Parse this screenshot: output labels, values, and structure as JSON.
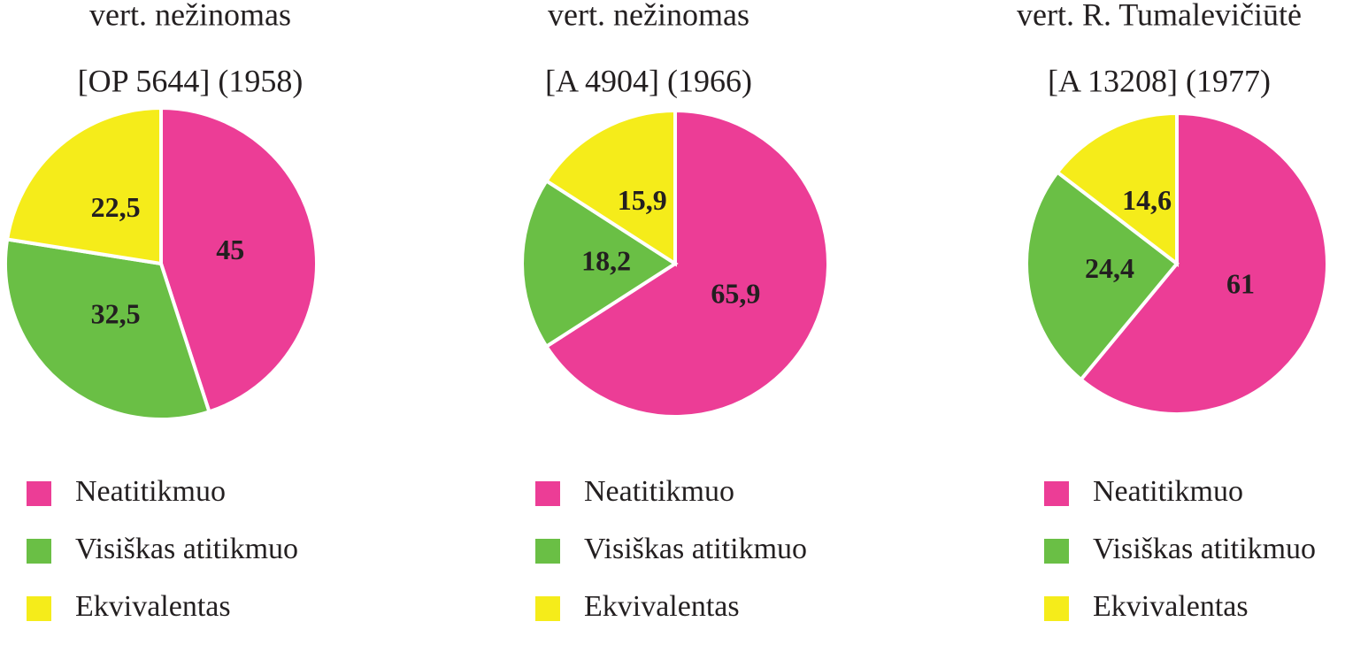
{
  "chart_data": [
    {
      "type": "pie",
      "title": "vert. nežinomas",
      "subtitle": "[OP 5644] (1958)",
      "categories": [
        "Neatitikmuo",
        "Visiškas atitikmuo",
        "Ekvivalentas"
      ],
      "colors": [
        "#ec3d96",
        "#6abf45",
        "#f5ec1a"
      ],
      "values": [
        45,
        32.5,
        22.5
      ],
      "value_labels": [
        "45",
        "32,5",
        "22,5"
      ]
    },
    {
      "type": "pie",
      "title": "vert. nežinomas",
      "subtitle": "[A 4904] (1966)",
      "categories": [
        "Neatitikmuo",
        "Visiškas atitikmuo",
        "Ekvivalentas"
      ],
      "colors": [
        "#ec3d96",
        "#6abf45",
        "#f5ec1a"
      ],
      "values": [
        65.9,
        18.2,
        15.9
      ],
      "value_labels": [
        "65,9",
        "18,2",
        "15,9"
      ]
    },
    {
      "type": "pie",
      "title": "vert. R. Tumalevičiūtė",
      "subtitle": "[A 13208] (1977)",
      "categories": [
        "Neatitikmuo",
        "Visiškas atitikmuo",
        "Ekvivalentas"
      ],
      "colors": [
        "#ec3d96",
        "#6abf45",
        "#f5ec1a"
      ],
      "values": [
        61,
        24.4,
        14.6
      ],
      "value_labels": [
        "61",
        "24,4",
        "14,6"
      ]
    }
  ]
}
